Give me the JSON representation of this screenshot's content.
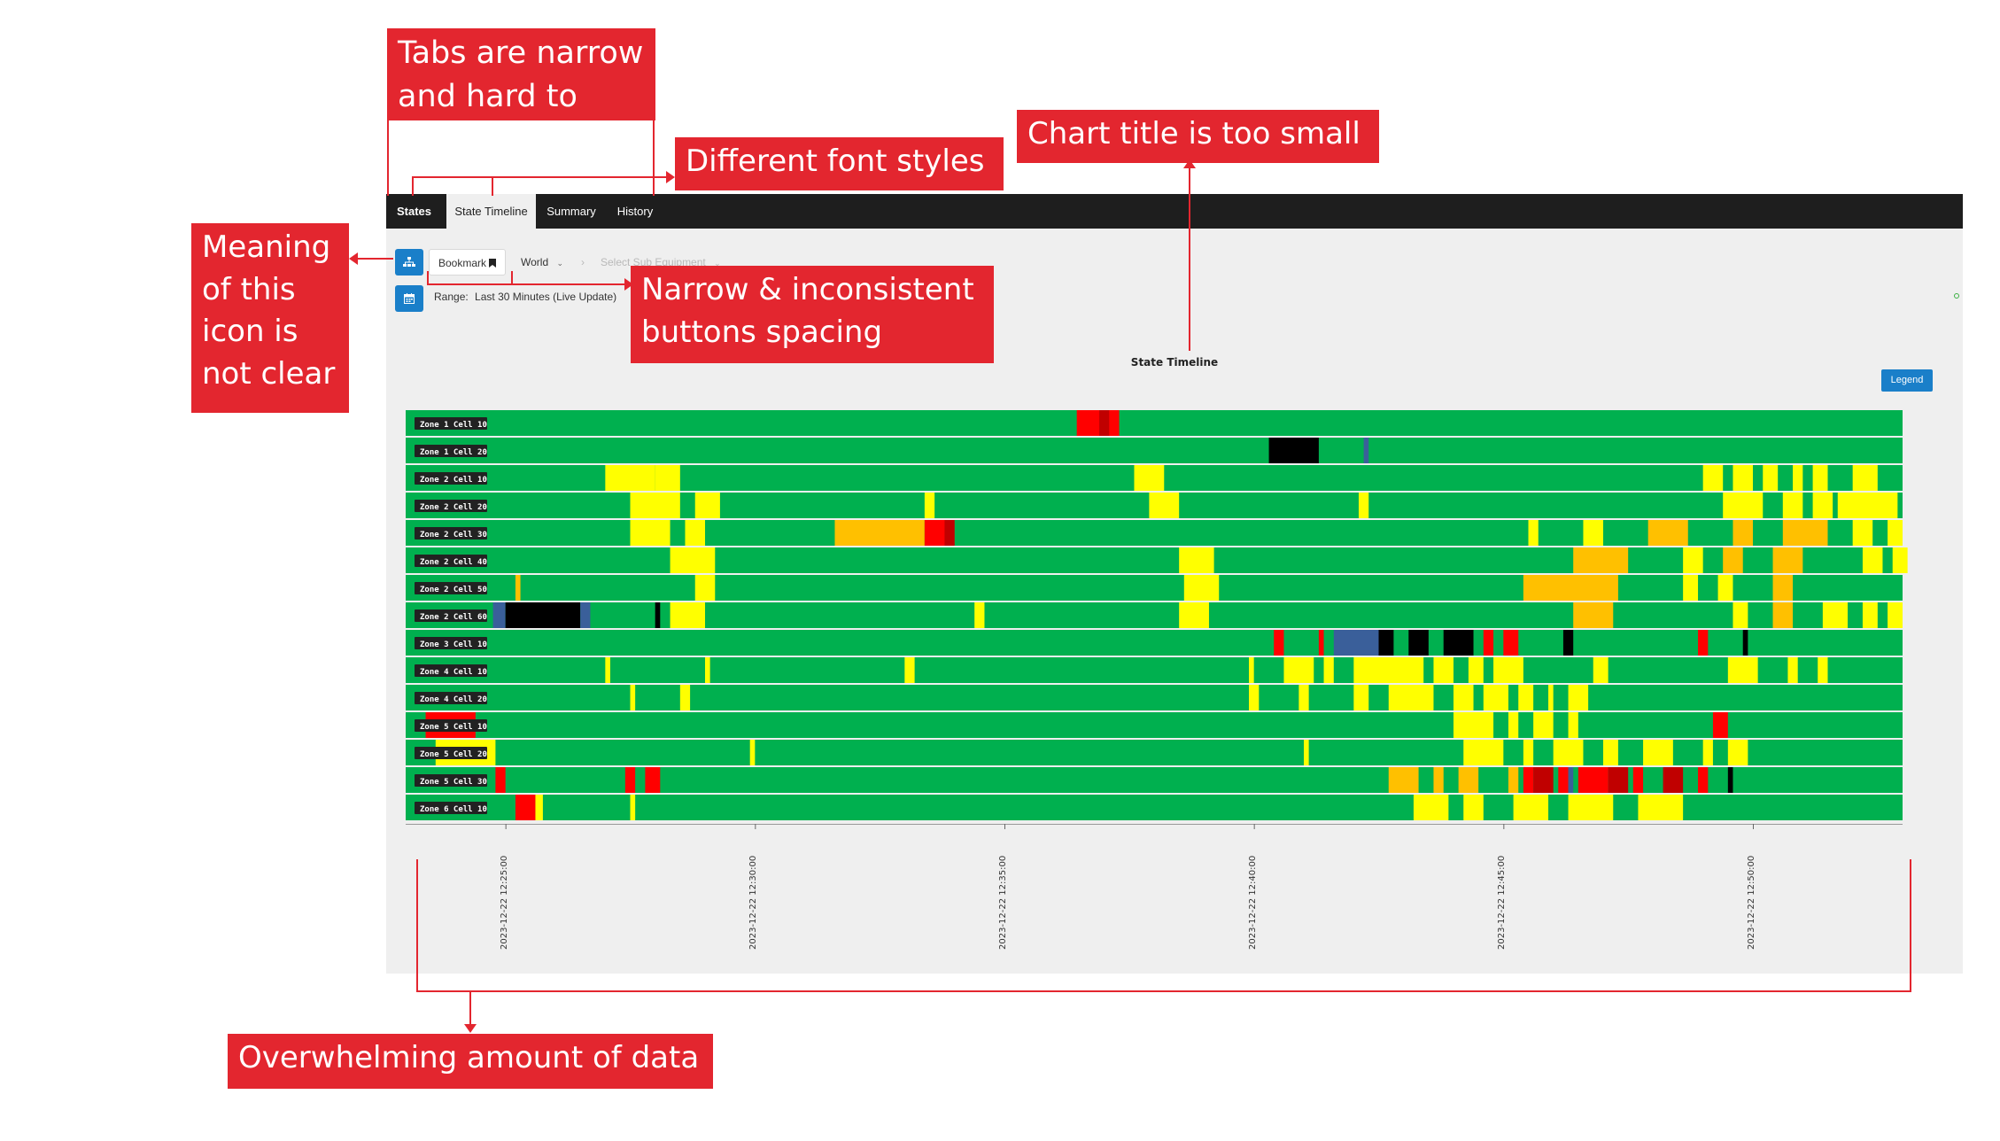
{
  "tabs": [
    {
      "label": "States",
      "active": false
    },
    {
      "label": "State Timeline",
      "active": true
    },
    {
      "label": "Summary",
      "active": false
    },
    {
      "label": "History",
      "active": false
    }
  ],
  "toolbar": {
    "hierarchy_icon": "hierarchy-icon",
    "bookmark_label": "Bookmark",
    "world_label": "World",
    "sub_equipment_placeholder": "Select Sub Equipment",
    "calendar_icon": "calendar-icon",
    "range_label": "Range:",
    "range_value": "Last 30 Minutes (Live Update)"
  },
  "chart_title": "State Timeline",
  "legend_label": "Legend",
  "colors": {
    "green": "#00b04f",
    "yellow": "#ffff00",
    "orange": "#ffc000",
    "red": "#ff0000",
    "darkred": "#c00000",
    "black": "#000000",
    "blue": "#3a5f9a",
    "annotation": "#e3262f"
  },
  "chart_data": {
    "type": "timeline",
    "title": "State Timeline",
    "x_start": "2023-12-22 12:23:00",
    "x_end": "2023-12-22 12:53:00",
    "x_ticks": [
      "2023-12-22 12:25:00",
      "2023-12-22 12:30:00",
      "2023-12-22 12:35:00",
      "2023-12-22 12:40:00",
      "2023-12-22 12:45:00",
      "2023-12-22 12:50:00"
    ],
    "rows": [
      {
        "name": "Zone 1 Cell 10",
        "events": [
          [
            "red",
            13.45,
            14.3
          ],
          [
            "darkred",
            13.9,
            14.1
          ]
        ]
      },
      {
        "name": "Zone 1 Cell 20",
        "events": [
          [
            "black",
            17.3,
            18.3
          ],
          [
            "blue",
            19.2,
            19.3
          ]
        ]
      },
      {
        "name": "Zone 2 Cell 10",
        "events": [
          [
            "yellow",
            4.0,
            4.5
          ],
          [
            "yellow",
            4.5,
            5.0
          ],
          [
            "yellow",
            5.0,
            5.5
          ],
          [
            "yellow",
            14.6,
            15.2
          ],
          [
            "yellow",
            26.0,
            26.4
          ],
          [
            "yellow",
            26.6,
            27.0
          ],
          [
            "yellow",
            27.2,
            27.5
          ],
          [
            "yellow",
            27.8,
            28.0
          ],
          [
            "yellow",
            28.2,
            28.5
          ],
          [
            "yellow",
            29.0,
            29.5
          ]
        ]
      },
      {
        "name": "Zone 2 Cell 20",
        "events": [
          [
            "yellow",
            4.5,
            5.5
          ],
          [
            "yellow",
            5.8,
            6.3
          ],
          [
            "yellow",
            10.4,
            10.6
          ],
          [
            "yellow",
            14.9,
            15.5
          ],
          [
            "yellow",
            19.1,
            19.3
          ],
          [
            "yellow",
            26.4,
            27.2
          ],
          [
            "yellow",
            27.6,
            28.0
          ],
          [
            "yellow",
            28.2,
            28.6
          ],
          [
            "yellow",
            28.7,
            29.9
          ],
          [
            "yellow",
            30.2,
            30.6
          ]
        ]
      },
      {
        "name": "Zone 2 Cell 30",
        "events": [
          [
            "yellow",
            4.5,
            5.3
          ],
          [
            "yellow",
            5.6,
            6.0
          ],
          [
            "orange",
            8.6,
            10.4
          ],
          [
            "red",
            10.4,
            11.0
          ],
          [
            "darkred",
            10.8,
            11.0
          ],
          [
            "yellow",
            22.5,
            22.7
          ],
          [
            "yellow",
            23.6,
            24.0
          ],
          [
            "orange",
            24.9,
            25.7
          ],
          [
            "orange",
            26.6,
            27.0
          ],
          [
            "orange",
            27.6,
            28.5
          ],
          [
            "yellow",
            29.0,
            29.4
          ],
          [
            "yellow",
            29.7,
            30.0
          ]
        ]
      },
      {
        "name": "Zone 2 Cell 40",
        "events": [
          [
            "yellow",
            5.3,
            6.2
          ],
          [
            "yellow",
            15.5,
            16.2
          ],
          [
            "orange",
            23.4,
            24.5
          ],
          [
            "yellow",
            25.6,
            26.0
          ],
          [
            "orange",
            26.4,
            26.8
          ],
          [
            "orange",
            27.4,
            28.0
          ],
          [
            "yellow",
            29.2,
            29.6
          ],
          [
            "yellow",
            29.8,
            30.1
          ]
        ]
      },
      {
        "name": "Zone 2 Cell 50",
        "events": [
          [
            "orange",
            2.2,
            2.3
          ],
          [
            "yellow",
            5.8,
            6.2
          ],
          [
            "yellow",
            15.6,
            16.3
          ],
          [
            "orange",
            22.4,
            24.3
          ],
          [
            "yellow",
            25.6,
            25.9
          ],
          [
            "yellow",
            26.3,
            26.6
          ],
          [
            "orange",
            27.4,
            27.8
          ]
        ]
      },
      {
        "name": "Zone 2 Cell 60",
        "events": [
          [
            "blue",
            1.75,
            2.0
          ],
          [
            "black",
            2.0,
            3.5
          ],
          [
            "blue",
            3.5,
            3.7
          ],
          [
            "black",
            5.0,
            5.1
          ],
          [
            "yellow",
            5.3,
            6.0
          ],
          [
            "yellow",
            11.4,
            11.6
          ],
          [
            "yellow",
            15.5,
            16.1
          ],
          [
            "orange",
            23.4,
            24.2
          ],
          [
            "yellow",
            26.6,
            26.9
          ],
          [
            "orange",
            27.4,
            27.8
          ],
          [
            "yellow",
            28.4,
            28.9
          ],
          [
            "yellow",
            29.2,
            29.5
          ],
          [
            "yellow",
            29.7,
            30.0
          ]
        ]
      },
      {
        "name": "Zone 3 Cell 10",
        "events": [
          [
            "red",
            17.4,
            17.6
          ],
          [
            "red",
            18.3,
            18.4
          ],
          [
            "blue",
            18.6,
            19.5
          ],
          [
            "black",
            19.5,
            19.8
          ],
          [
            "black",
            20.1,
            20.5
          ],
          [
            "black",
            20.8,
            21.4
          ],
          [
            "red",
            21.6,
            21.8
          ],
          [
            "red",
            22.0,
            22.3
          ],
          [
            "black",
            23.2,
            23.4
          ],
          [
            "red",
            25.9,
            26.1
          ],
          [
            "black",
            26.8,
            26.9
          ]
        ]
      },
      {
        "name": "Zone 4 Cell 10",
        "events": [
          [
            "yellow",
            4.0,
            4.1
          ],
          [
            "yellow",
            6.0,
            6.1
          ],
          [
            "yellow",
            10.0,
            10.2
          ],
          [
            "yellow",
            16.9,
            17.0
          ],
          [
            "yellow",
            17.6,
            18.2
          ],
          [
            "yellow",
            18.4,
            18.6
          ],
          [
            "yellow",
            19.0,
            20.4
          ],
          [
            "yellow",
            20.6,
            21.0
          ],
          [
            "yellow",
            21.3,
            21.6
          ],
          [
            "yellow",
            21.8,
            22.4
          ],
          [
            "yellow",
            23.8,
            24.1
          ],
          [
            "yellow",
            26.5,
            27.1
          ],
          [
            "yellow",
            27.7,
            27.9
          ],
          [
            "yellow",
            28.3,
            28.5
          ]
        ]
      },
      {
        "name": "Zone 4 Cell 20",
        "events": [
          [
            "yellow",
            4.5,
            4.6
          ],
          [
            "yellow",
            5.5,
            5.7
          ],
          [
            "yellow",
            16.9,
            17.1
          ],
          [
            "yellow",
            17.9,
            18.1
          ],
          [
            "yellow",
            19.0,
            19.3
          ],
          [
            "yellow",
            19.7,
            20.6
          ],
          [
            "yellow",
            21.0,
            21.4
          ],
          [
            "yellow",
            21.6,
            22.1
          ],
          [
            "yellow",
            22.3,
            22.6
          ],
          [
            "yellow",
            22.9,
            23.0
          ],
          [
            "yellow",
            23.3,
            23.7
          ]
        ]
      },
      {
        "name": "Zone 5 Cell 10",
        "events": [
          [
            "red",
            0.4,
            1.4
          ],
          [
            "yellow",
            21.0,
            21.8
          ],
          [
            "yellow",
            22.1,
            22.3
          ],
          [
            "yellow",
            22.6,
            23.0
          ],
          [
            "yellow",
            23.3,
            23.5
          ],
          [
            "red",
            26.2,
            26.5
          ]
        ]
      },
      {
        "name": "Zone 5 Cell 20",
        "events": [
          [
            "yellow",
            0.6,
            1.8
          ],
          [
            "yellow",
            6.9,
            7.0
          ],
          [
            "yellow",
            18.0,
            18.1
          ],
          [
            "yellow",
            21.2,
            22.0
          ],
          [
            "yellow",
            22.4,
            22.6
          ],
          [
            "yellow",
            23.0,
            23.6
          ],
          [
            "yellow",
            24.0,
            24.3
          ],
          [
            "yellow",
            24.8,
            25.4
          ],
          [
            "yellow",
            26.0,
            26.2
          ],
          [
            "yellow",
            26.5,
            26.9
          ]
        ]
      },
      {
        "name": "Zone 5 Cell 30",
        "events": [
          [
            "red",
            1.8,
            2.0
          ],
          [
            "red",
            4.4,
            4.6
          ],
          [
            "red",
            4.8,
            5.1
          ],
          [
            "orange",
            19.7,
            20.3
          ],
          [
            "orange",
            20.6,
            20.8
          ],
          [
            "orange",
            21.1,
            21.5
          ],
          [
            "orange",
            22.1,
            22.3
          ],
          [
            "red",
            22.4,
            22.6
          ],
          [
            "darkred",
            22.6,
            23.0
          ],
          [
            "red",
            23.1,
            23.3
          ],
          [
            "blue",
            23.3,
            23.4
          ],
          [
            "red",
            23.5,
            24.1
          ],
          [
            "darkred",
            24.1,
            24.5
          ],
          [
            "red",
            24.6,
            24.8
          ],
          [
            "darkred",
            25.2,
            25.6
          ],
          [
            "red",
            25.9,
            26.1
          ],
          [
            "black",
            26.5,
            26.6
          ]
        ]
      },
      {
        "name": "Zone 6 Cell 10",
        "events": [
          [
            "red",
            2.2,
            2.6
          ],
          [
            "yellow",
            2.6,
            2.75
          ],
          [
            "yellow",
            4.5,
            4.6
          ],
          [
            "yellow",
            20.2,
            20.9
          ],
          [
            "yellow",
            21.2,
            21.6
          ],
          [
            "yellow",
            22.2,
            22.9
          ],
          [
            "yellow",
            23.3,
            24.2
          ],
          [
            "yellow",
            24.7,
            25.6
          ]
        ]
      }
    ]
  },
  "annotations": {
    "tabs_note": "Tabs are narrow and hard to spot",
    "font_note": "Different font styles",
    "title_note": "Chart title is too small",
    "icon_note": "Meaning of this icon is not clear",
    "buttons_note": "Narrow & inconsistent buttons spacing",
    "data_note": "Overwhelming amount of data"
  }
}
